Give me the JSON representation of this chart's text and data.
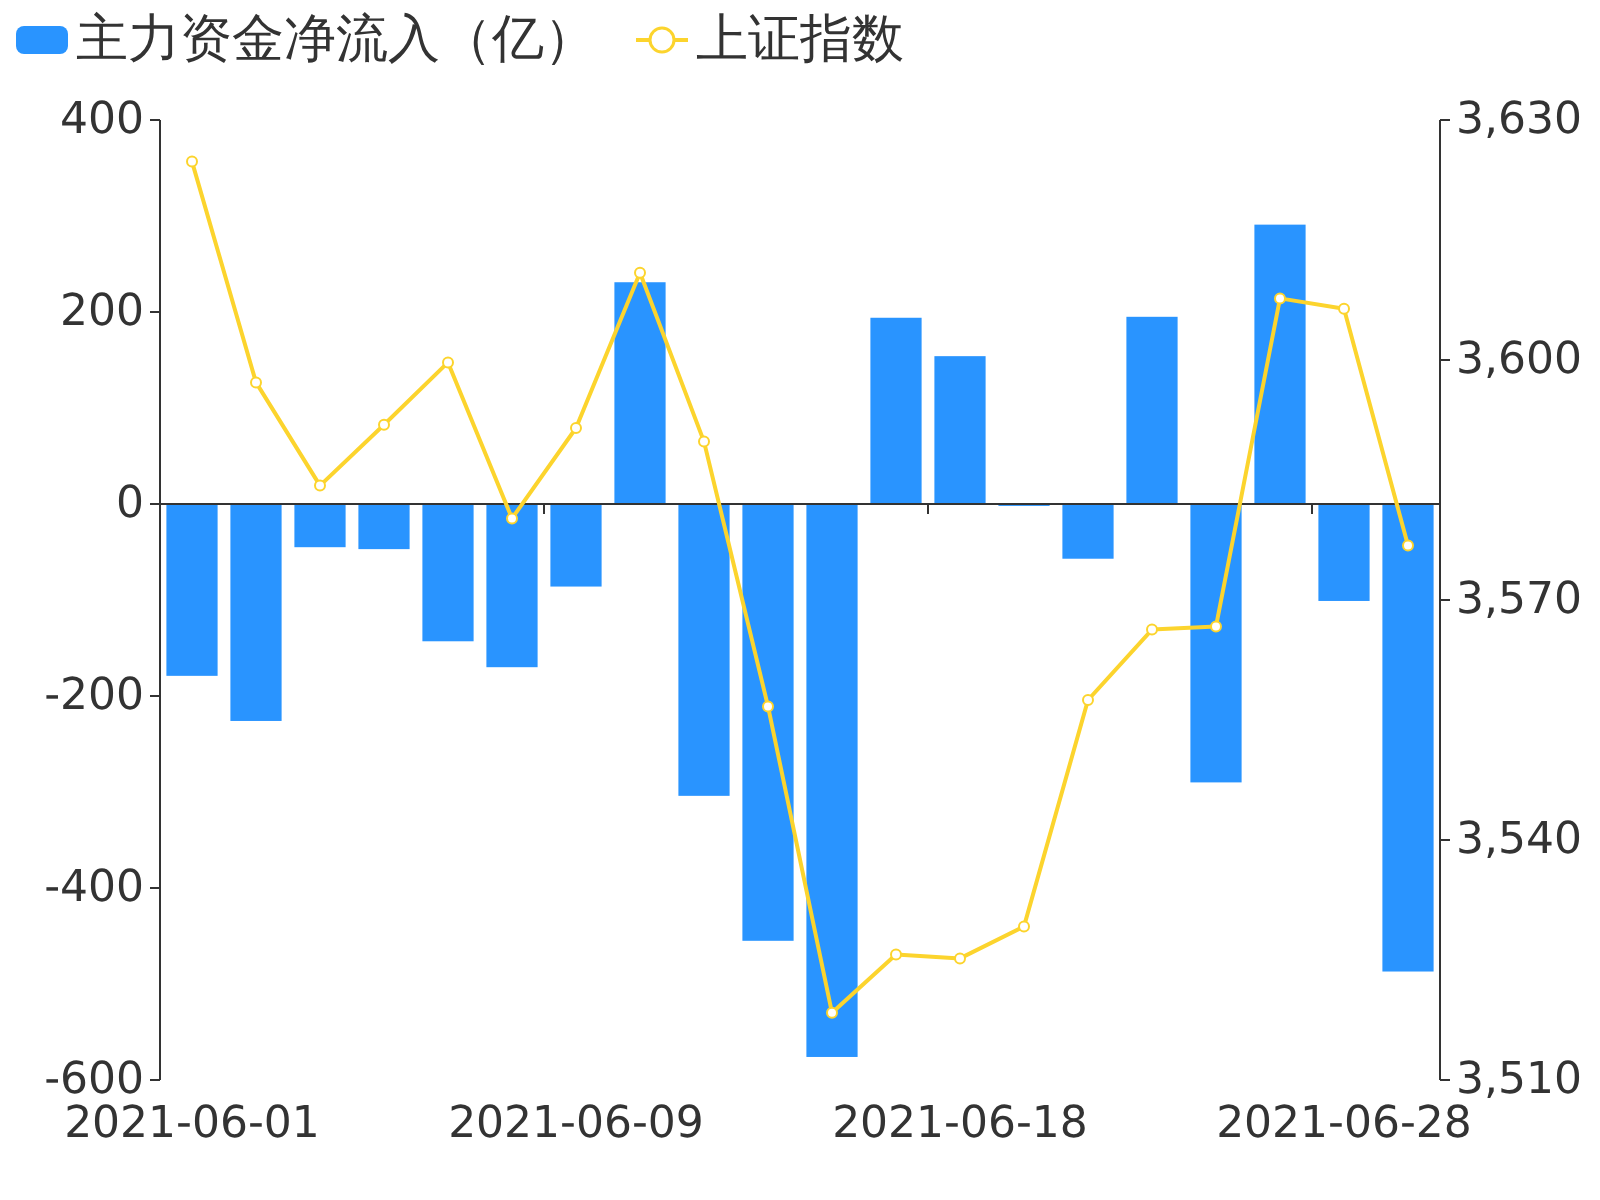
{
  "chart_data": {
    "type": "bar",
    "categories": [
      "2021-06-01",
      null,
      null,
      null,
      null,
      null,
      "2021-06-09",
      null,
      null,
      null,
      null,
      null,
      "2021-06-18",
      null,
      null,
      null,
      null,
      null,
      "2021-06-28",
      null
    ],
    "series": [
      {
        "name": "主力资金净流入（亿）",
        "color": "#2994ff",
        "values": [
          -179,
          -226,
          -45,
          -47,
          -143,
          -170,
          -86,
          231,
          -304,
          -455,
          -576,
          194,
          154,
          -2,
          -57,
          195,
          -290,
          291,
          -101,
          -487
        ]
      },
      {
        "name": "上证指数",
        "type": "line",
        "axis": "y2",
        "color": "#fcd42d",
        "marker": "circle",
        "values": [
          3624.8,
          3597.2,
          3584.3,
          3591.9,
          3599.7,
          3580.2,
          3591.5,
          3610.9,
          3589.8,
          3556.7,
          3518.4,
          3525.7,
          3525.2,
          3529.2,
          3557.5,
          3566.3,
          3566.7,
          3607.7,
          3606.4,
          3576.8
        ]
      }
    ],
    "ylim": [
      -600,
      400
    ],
    "yticks": [
      -600,
      -400,
      -200,
      0,
      200,
      400
    ],
    "y2lim": [
      3510,
      3630
    ],
    "y2ticks": [
      {
        "value": 3510,
        "label": "3,510"
      },
      {
        "value": 3540,
        "label": "3,540"
      },
      {
        "value": 3570,
        "label": "3,570"
      },
      {
        "value": 3600,
        "label": "3,600"
      },
      {
        "value": 3630,
        "label": "3,630"
      }
    ],
    "legend": "top left"
  }
}
